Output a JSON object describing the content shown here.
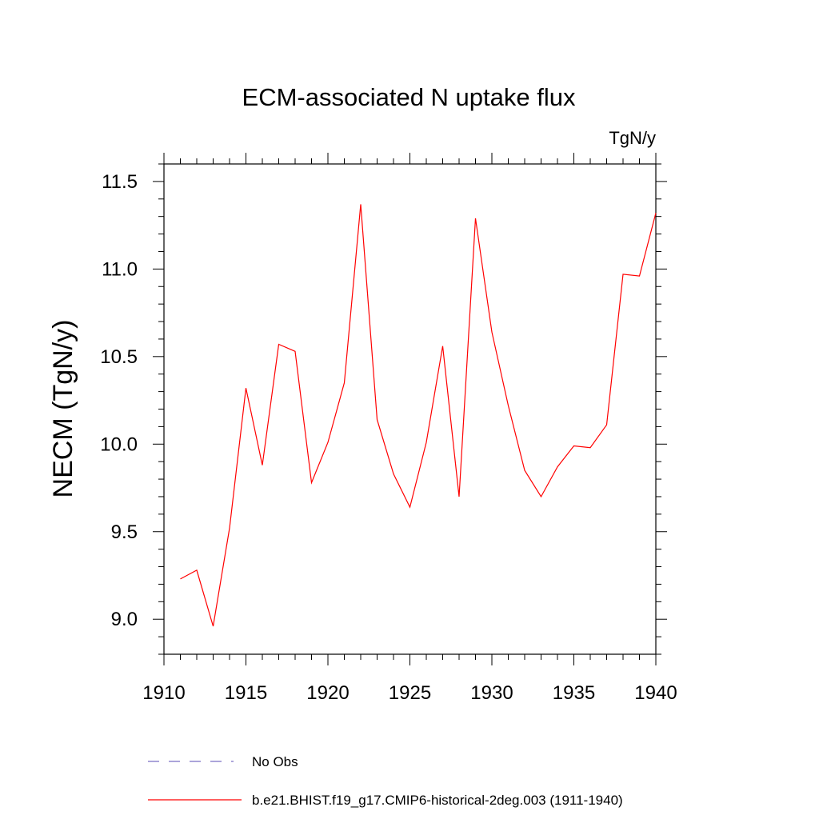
{
  "chart_data": {
    "type": "line",
    "title": "ECM-associated N uptake flux",
    "units": "TgN/y",
    "ylabel": "NECM  (TgN/y)",
    "xlabel": "",
    "xlim": [
      1910,
      1940
    ],
    "ylim": [
      8.8,
      11.6
    ],
    "xticks": [
      1910,
      1915,
      1920,
      1925,
      1930,
      1935,
      1940
    ],
    "xtick_labels": [
      "1910",
      "1915",
      "1920",
      "1925",
      "1930",
      "1935",
      "1940"
    ],
    "yticks": [
      9.0,
      9.5,
      10.0,
      10.5,
      11.0,
      11.5
    ],
    "ytick_labels": [
      "9.0",
      "9.5",
      "10.0",
      "10.5",
      "11.0",
      "11.5"
    ],
    "grid": false,
    "legend_position": "bottom",
    "legend": [
      {
        "label": "No Obs",
        "style": "dashed",
        "color": "#7b6fc4"
      },
      {
        "label": "b.e21.BHIST.f19_g17.CMIP6-historical-2deg.003 (1911-1940)",
        "style": "solid",
        "color": "#ff0000"
      }
    ],
    "series": [
      {
        "name": "b.e21.BHIST.f19_g17.CMIP6-historical-2deg.003 (1911-1940)",
        "color": "#ff0000",
        "x": [
          1911,
          1912,
          1913,
          1914,
          1915,
          1916,
          1917,
          1918,
          1919,
          1920,
          1921,
          1922,
          1923,
          1924,
          1925,
          1926,
          1927,
          1928,
          1929,
          1930,
          1931,
          1932,
          1933,
          1934,
          1935,
          1936,
          1937,
          1938,
          1939,
          1940
        ],
        "y": [
          9.23,
          9.28,
          8.96,
          9.52,
          10.32,
          9.88,
          10.57,
          10.53,
          9.78,
          10.01,
          10.35,
          11.37,
          10.14,
          9.83,
          9.64,
          10.01,
          10.56,
          9.7,
          11.29,
          10.64,
          10.22,
          9.85,
          9.7,
          9.87,
          9.99,
          9.98,
          10.11,
          10.97,
          10.96,
          11.32
        ]
      }
    ]
  }
}
